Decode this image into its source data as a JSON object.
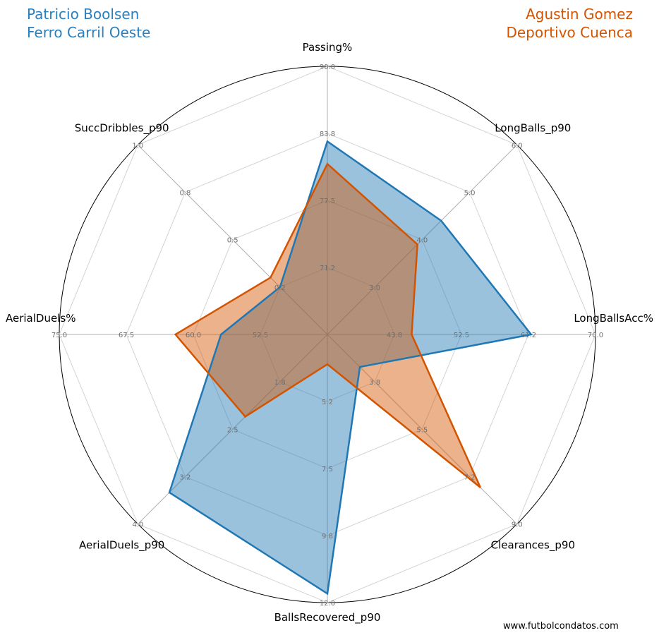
{
  "players": [
    {
      "name": "Patricio Boolsen",
      "team": "Ferro Carril Oeste",
      "color": "#1f77b4"
    },
    {
      "name": "Agustin Gomez",
      "team": "Deportivo Cuenca",
      "color": "#d35400"
    }
  ],
  "footer": "www.futbolcondatos.com",
  "chart_data": {
    "type": "radar",
    "grid": true,
    "axes": [
      {
        "label": "Passing%",
        "range": [
          65,
          90
        ],
        "ticks": [
          "71.2",
          "77.5",
          "83.8",
          "90.0"
        ]
      },
      {
        "label": "LongBalls_p90",
        "range": [
          2,
          6
        ],
        "ticks": [
          "3.0",
          "4.0",
          "5.0",
          "6.0"
        ]
      },
      {
        "label": "LongBallsAcc%",
        "range": [
          35,
          70
        ],
        "ticks": [
          "43.8",
          "52.5",
          "61.2",
          "70.0"
        ]
      },
      {
        "label": "Clearances_p90",
        "range": [
          2,
          9
        ],
        "ticks": [
          "3.8",
          "5.5",
          "7.2",
          "9.0"
        ]
      },
      {
        "label": "BallsRecovered_p90",
        "range": [
          3,
          12
        ],
        "ticks": [
          "5.2",
          "7.5",
          "9.8",
          "12.0"
        ]
      },
      {
        "label": "AerialDuels_p90",
        "range": [
          1,
          4
        ],
        "ticks": [
          "1.8",
          "2.5",
          "3.2",
          "4.0"
        ]
      },
      {
        "label": "AerialDuels%",
        "range": [
          45,
          75
        ],
        "ticks": [
          "52.5",
          "60.0",
          "67.5",
          "75.0"
        ]
      },
      {
        "label": "SuccDribbles_p90",
        "range": [
          0,
          1
        ],
        "ticks": [
          "0.2",
          "0.5",
          "0.8",
          "1.0"
        ]
      }
    ],
    "series": [
      {
        "name": "Patricio Boolsen",
        "color": "#1f77b4",
        "values": [
          83.0,
          4.4,
          61.6,
          3.2,
          11.7,
          3.5,
          56.9,
          0.25
        ]
      },
      {
        "name": "Agustin Gomez",
        "color": "#d35400",
        "values": [
          80.9,
          3.9,
          46.0,
          7.65,
          4.0,
          2.3,
          62.0,
          0.3
        ]
      }
    ]
  }
}
